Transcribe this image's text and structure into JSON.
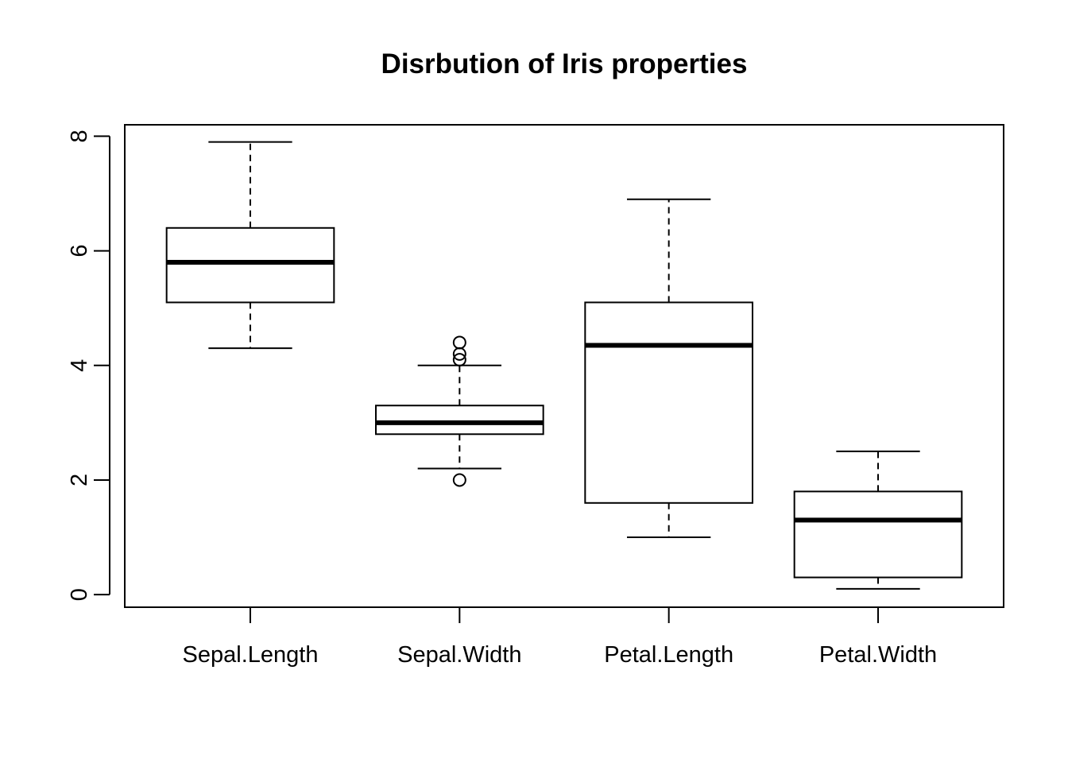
{
  "chart_data": {
    "type": "boxplot",
    "title": "Disrbution of Iris properties",
    "xlabel": "",
    "ylabel": "",
    "ylim": [
      -0.22,
      8.2
    ],
    "yticks": [
      0,
      2,
      4,
      6,
      8
    ],
    "ytick_labels": [
      "0",
      "2",
      "4",
      "6",
      "8"
    ],
    "grid": false,
    "legend": "none",
    "categories": [
      "Sepal.Length",
      "Sepal.Width",
      "Petal.Length",
      "Petal.Width"
    ],
    "boxes": [
      {
        "label": "Sepal.Length",
        "whisker_low": 4.3,
        "q1": 5.1,
        "median": 5.8,
        "q3": 6.4,
        "whisker_high": 7.9,
        "outliers": []
      },
      {
        "label": "Sepal.Width",
        "whisker_low": 2.2,
        "q1": 2.8,
        "median": 3.0,
        "q3": 3.3,
        "whisker_high": 4.0,
        "outliers": [
          4.4,
          4.1,
          4.2,
          2.0
        ]
      },
      {
        "label": "Petal.Length",
        "whisker_low": 1.0,
        "q1": 1.6,
        "median": 4.35,
        "q3": 5.1,
        "whisker_high": 6.9,
        "outliers": []
      },
      {
        "label": "Petal.Width",
        "whisker_low": 0.1,
        "q1": 0.3,
        "median": 1.3,
        "q3": 1.8,
        "whisker_high": 2.5,
        "outliers": []
      }
    ],
    "colors": {
      "box_fill": "#ffffff",
      "stroke": "#000000"
    }
  }
}
